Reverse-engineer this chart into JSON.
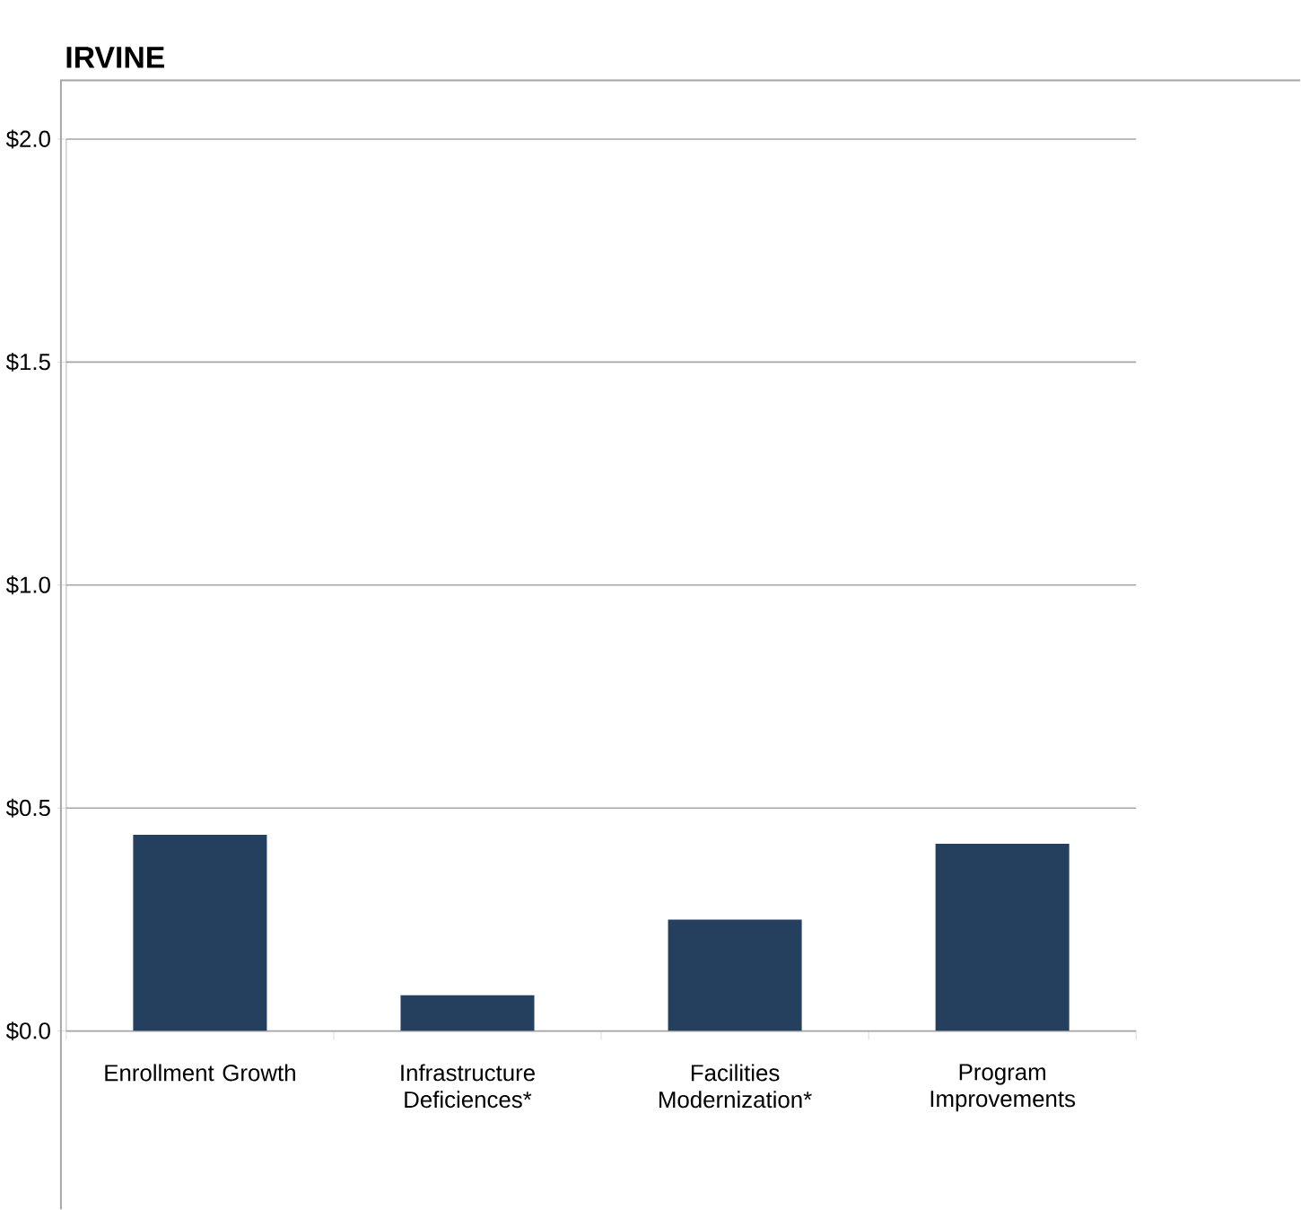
{
  "chart_data": {
    "type": "bar",
    "title": "IRVINE",
    "categories": [
      "Enrollment Growth",
      "Infrastructure Deficiences*",
      "Facilities Modernization*",
      "Program Improvements"
    ],
    "values": [
      0.44,
      0.08,
      0.25,
      0.42
    ],
    "color": "#253f5f",
    "ylim": [
      0,
      2
    ],
    "yticks": [
      {
        "value": 0,
        "label": "$0.0"
      },
      {
        "value": 0.5,
        "label": "$0.5"
      },
      {
        "value": 1,
        "label": "$1.0"
      },
      {
        "value": 1.5,
        "label": "$1.5"
      },
      {
        "value": 2,
        "label": "$2.0"
      }
    ],
    "grid": "y"
  }
}
